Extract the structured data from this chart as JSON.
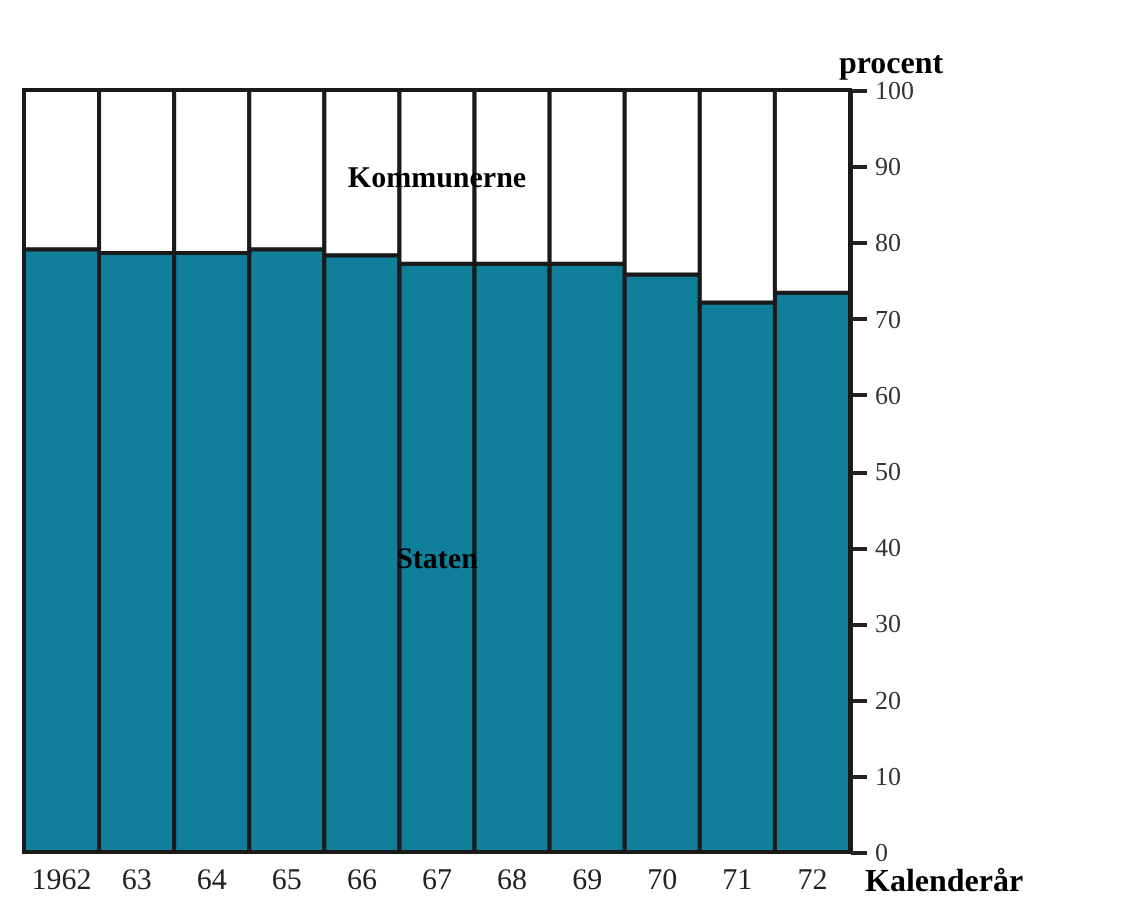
{
  "chart_data": {
    "type": "bar",
    "stacked": true,
    "xlabel": "Kalenderår",
    "ylabel": "procent",
    "categories": [
      "1962",
      "63",
      "64",
      "65",
      "66",
      "67",
      "68",
      "69",
      "70",
      "71",
      "72"
    ],
    "series": [
      {
        "name": "Staten",
        "color": "#0f7f9a",
        "values": [
          79.1,
          78.6,
          78.6,
          79.1,
          78.3,
          77.2,
          77.2,
          77.2,
          75.8,
          72.1,
          73.4
        ]
      },
      {
        "name": "Kommunerne",
        "color": "#ffffff",
        "values": [
          20.9,
          21.4,
          21.4,
          20.9,
          21.7,
          22.8,
          22.8,
          22.8,
          24.2,
          27.9,
          26.6
        ]
      }
    ],
    "ylim": [
      0,
      100
    ],
    "yticks": [
      0,
      10,
      20,
      30,
      40,
      50,
      60,
      70,
      80,
      90,
      100
    ],
    "legend": false
  }
}
